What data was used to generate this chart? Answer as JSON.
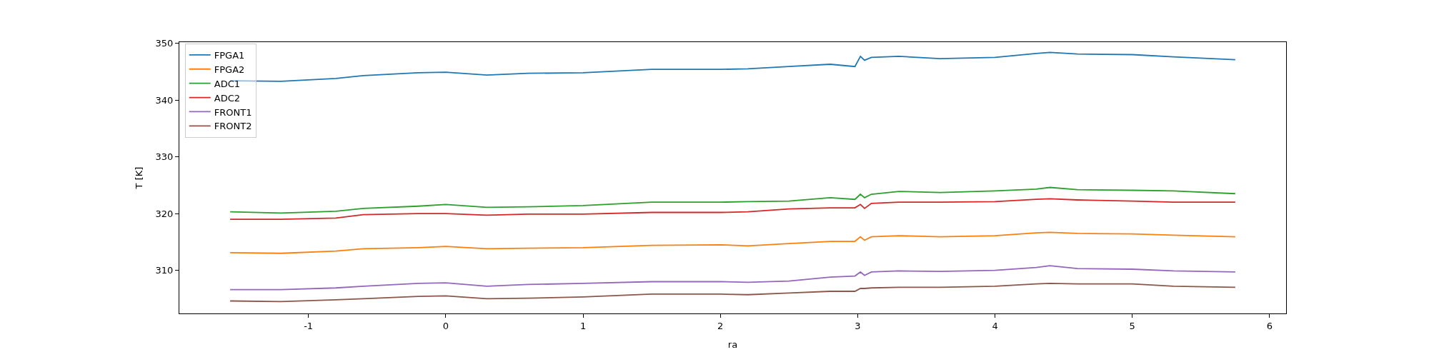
{
  "chart_data": {
    "type": "line",
    "xlabel": "ra",
    "ylabel": "T [K]",
    "x": [
      -1.57,
      -1.2,
      -0.8,
      -0.6,
      -0.2,
      0,
      0.3,
      0.6,
      1.0,
      1.5,
      2.0,
      2.2,
      2.5,
      2.8,
      2.98,
      3.02,
      3.05,
      3.1,
      3.3,
      3.6,
      4.0,
      4.3,
      4.4,
      4.6,
      5.0,
      5.3,
      5.75
    ],
    "series": [
      {
        "name": "FPGA1",
        "color": "#1f77b4",
        "values": [
          343.4,
          343.3,
          343.8,
          344.3,
          344.8,
          344.9,
          344.4,
          344.7,
          344.8,
          345.4,
          345.4,
          345.5,
          345.9,
          346.3,
          345.9,
          347.7,
          347.0,
          347.5,
          347.7,
          347.3,
          347.5,
          348.2,
          348.4,
          348.1,
          348.0,
          347.6,
          347.1
        ]
      },
      {
        "name": "FPGA2",
        "color": "#ff7f0e",
        "values": [
          313.1,
          313.0,
          313.4,
          313.8,
          314.0,
          314.2,
          313.8,
          313.9,
          314.0,
          314.4,
          314.5,
          314.3,
          314.7,
          315.1,
          315.1,
          315.9,
          315.3,
          315.9,
          316.1,
          315.9,
          316.1,
          316.6,
          316.7,
          316.5,
          316.4,
          316.2,
          315.9
        ]
      },
      {
        "name": "ADC1",
        "color": "#2ca02c",
        "values": [
          320.3,
          320.1,
          320.4,
          320.9,
          321.3,
          321.6,
          321.1,
          321.2,
          321.4,
          322.0,
          322.0,
          322.1,
          322.2,
          322.8,
          322.5,
          323.4,
          322.8,
          323.4,
          323.9,
          323.7,
          324.0,
          324.3,
          324.6,
          324.2,
          324.1,
          324.0,
          323.5
        ]
      },
      {
        "name": "ADC2",
        "color": "#d62728",
        "values": [
          319.0,
          319.0,
          319.2,
          319.8,
          320.0,
          320.0,
          319.7,
          319.9,
          319.9,
          320.2,
          320.2,
          320.3,
          320.8,
          321.0,
          321.0,
          321.6,
          320.9,
          321.8,
          322.0,
          322.0,
          322.1,
          322.5,
          322.6,
          322.4,
          322.2,
          322.0,
          322.0
        ]
      },
      {
        "name": "FRONT1",
        "color": "#9467bd",
        "values": [
          306.6,
          306.6,
          306.9,
          307.2,
          307.7,
          307.8,
          307.2,
          307.5,
          307.7,
          308.0,
          308.0,
          307.9,
          308.1,
          308.8,
          309.0,
          309.7,
          309.1,
          309.7,
          309.9,
          309.8,
          310.0,
          310.5,
          310.8,
          310.3,
          310.2,
          309.9,
          309.7
        ]
      },
      {
        "name": "FRONT2",
        "color": "#8c564b",
        "values": [
          304.6,
          304.5,
          304.8,
          305.0,
          305.4,
          305.5,
          305.0,
          305.1,
          305.3,
          305.8,
          305.8,
          305.7,
          306.0,
          306.3,
          306.3,
          306.8,
          306.8,
          306.9,
          307.0,
          307.0,
          307.2,
          307.6,
          307.7,
          307.6,
          307.6,
          307.2,
          307.0
        ]
      }
    ],
    "xlim": [
      -1.94,
      6.12
    ],
    "ylim": [
      302.4,
      350.2
    ],
    "xticks": [
      -1,
      0,
      1,
      2,
      3,
      4,
      5,
      6
    ],
    "yticks": [
      310,
      320,
      330,
      340,
      350
    ],
    "legend": "top left",
    "marker": "none",
    "line_style": "solid"
  }
}
